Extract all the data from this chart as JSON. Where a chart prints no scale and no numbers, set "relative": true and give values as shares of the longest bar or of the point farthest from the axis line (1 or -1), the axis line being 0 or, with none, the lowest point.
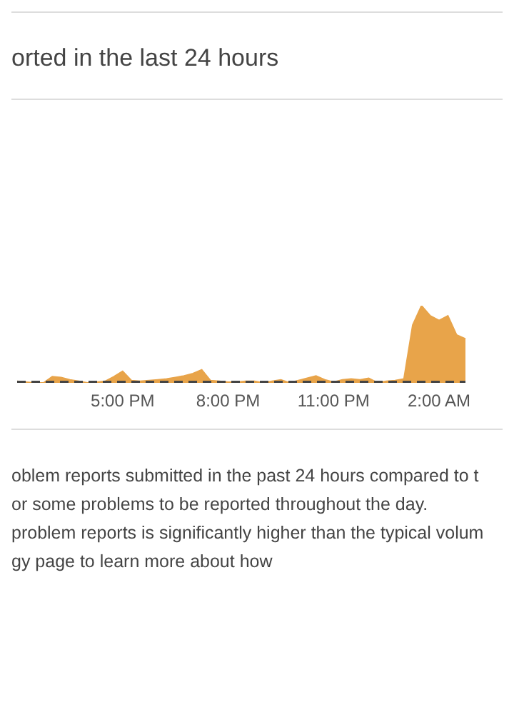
{
  "chart_data": {
    "type": "area",
    "title": "orted in the last 24 hours",
    "relative": true,
    "categories": [
      null,
      null,
      null,
      null,
      null,
      null,
      null,
      null,
      null,
      null,
      null,
      null,
      "5:00 PM",
      null,
      null,
      null,
      null,
      null,
      null,
      null,
      null,
      null,
      null,
      null,
      "8:00 PM",
      null,
      null,
      null,
      null,
      null,
      null,
      null,
      null,
      null,
      null,
      null,
      "11:00 PM",
      null,
      null,
      null,
      null,
      null,
      null,
      null,
      null,
      null,
      null,
      null,
      "2:00 AM",
      null,
      null,
      null
    ],
    "series": [
      {
        "color": "#e8a44a",
        "values": [
          0.02,
          0.01,
          0,
          0,
          0.08,
          0.07,
          0.04,
          0.02,
          0,
          0.01,
          0.02,
          0.08,
          0.15,
          0.03,
          0.02,
          0.03,
          0.04,
          0.05,
          0.07,
          0.09,
          0.12,
          0.17,
          0.03,
          0.02,
          0.01,
          0.01,
          0.02,
          0.02,
          0,
          0.02,
          0.04,
          0,
          0.03,
          0.06,
          0.09,
          0.04,
          0.01,
          0.04,
          0.05,
          0.04,
          0.06,
          0,
          0.02,
          0.03,
          0.05,
          0.75,
          1,
          0.87,
          0.81,
          0.87,
          0.62,
          0.57
        ]
      },
      {
        "type": "line",
        "color": "#444444",
        "line_style": "dashed",
        "values": [
          0.01,
          0.01,
          0.01,
          0.01,
          0.01,
          0.01,
          0.01,
          0.01,
          0.01,
          0.01,
          0.01,
          0.01,
          0.01,
          0.01,
          0.01,
          0.01,
          0.01,
          0.01,
          0.01,
          0.01,
          0.01,
          0.01,
          0.01,
          0.01,
          0.01,
          0.01,
          0.01,
          0.01,
          0.01,
          0.01,
          0.01,
          0.01,
          0.01,
          0.01,
          0.01,
          0.01,
          0.01,
          0.01,
          0.01,
          0.01,
          0.01,
          0.01,
          0.01,
          0.01,
          0.01,
          0.01,
          0.01,
          0.01,
          0.01,
          0.01,
          0.01,
          0.01
        ]
      }
    ],
    "marker": "none",
    "annotations": [
      "oblem reports submitted in the past 24 hours compared to t",
      "or some problems to be reported throughout the day.",
      "problem reports is significantly higher than the typical volum",
      "gy page to learn more about how"
    ]
  }
}
